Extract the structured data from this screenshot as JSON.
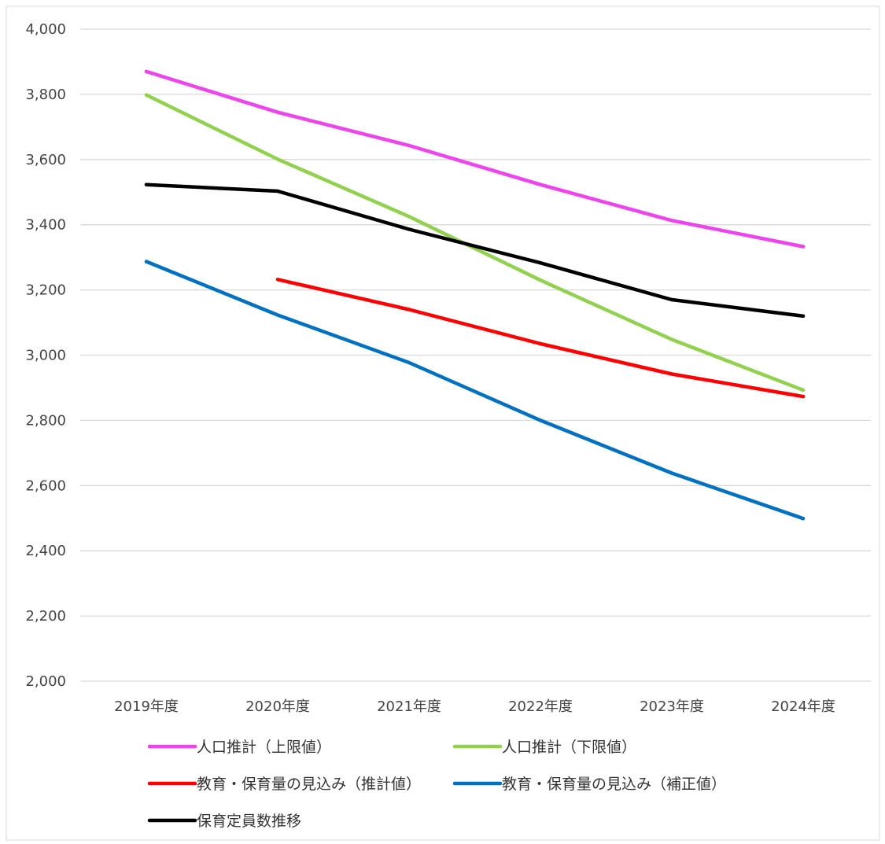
{
  "chart_data": {
    "type": "line",
    "title": "",
    "xlabel": "",
    "ylabel": "",
    "categories": [
      "2019年度",
      "2020年度",
      "2021年度",
      "2022年度",
      "2023年度",
      "2024年度"
    ],
    "ylim": [
      2000,
      4000
    ],
    "yticks": [
      2000,
      2200,
      2400,
      2600,
      2800,
      3000,
      3200,
      3400,
      3600,
      3800,
      4000
    ],
    "ytick_labels": [
      "2,000",
      "2,200",
      "2,400",
      "2,600",
      "2,800",
      "3,000",
      "3,200",
      "3,400",
      "3,600",
      "3,800",
      "4,000"
    ],
    "grid": "horizontal",
    "legend_position": "bottom",
    "series": [
      {
        "name": "人口推計（上限値）",
        "color": "#ee44ee",
        "values": [
          3870,
          3745,
          3643,
          3523,
          3413,
          3333
        ]
      },
      {
        "name": "人口推計（下限値）",
        "color": "#92d050",
        "values": [
          3798,
          3601,
          3425,
          3230,
          3048,
          2893
        ]
      },
      {
        "name": "教育・保育量の見込み（推計値）",
        "color": "#ff0000",
        "values": [
          null,
          3232,
          3140,
          3035,
          2942,
          2873
        ]
      },
      {
        "name": "教育・保育量の見込み（補正値）",
        "color": "#0070c0",
        "values": [
          3287,
          3123,
          2977,
          2800,
          2638,
          2499
        ]
      },
      {
        "name": "保育定員数推移",
        "color": "#000000",
        "values": [
          3523,
          3503,
          3386,
          3283,
          3170,
          3120
        ]
      }
    ]
  }
}
